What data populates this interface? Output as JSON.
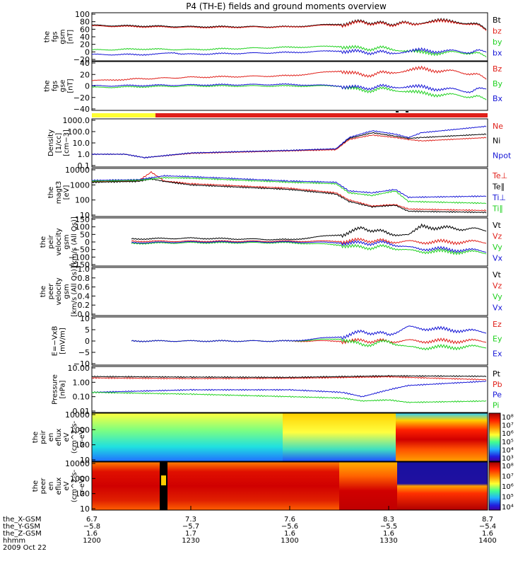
{
  "title": "P4 (TH-E) fields and ground moments overview",
  "colors": {
    "black": "#000000",
    "red": "#e0201a",
    "green": "#1fd11f",
    "blue": "#1515d6",
    "yellow": "#ffff33"
  },
  "chart_data": [
    {
      "type": "line",
      "ylabel": [
        "the",
        "fgs",
        "gsm",
        "[nT]"
      ],
      "ylim": [
        -30,
        100
      ],
      "yticks": [
        "100",
        "80",
        "60",
        "40",
        "20",
        "0",
        "−20"
      ],
      "series": [
        {
          "name": "Bt",
          "color": "black",
          "x": [
            1200,
            1230,
            1300,
            1316,
            1322,
            1330,
            1338,
            1345,
            1355,
            1400
          ],
          "y": [
            68,
            64,
            64,
            72,
            78,
            72,
            75,
            80,
            76,
            58
          ]
        },
        {
          "name": "bz",
          "color": "red",
          "x": [
            1200,
            1230,
            1300,
            1316,
            1322,
            1330,
            1338,
            1345,
            1355,
            1400
          ],
          "y": [
            66,
            62,
            63,
            70,
            76,
            70,
            74,
            78,
            74,
            55
          ]
        },
        {
          "name": "by",
          "color": "green",
          "x": [
            1200,
            1215,
            1230,
            1300,
            1316,
            1322,
            1330,
            1340,
            1355,
            1400
          ],
          "y": [
            -3,
            0,
            -2,
            5,
            8,
            0,
            3,
            -12,
            -10,
            -20
          ]
        },
        {
          "name": "bx",
          "color": "blue",
          "x": [
            1200,
            1215,
            1225,
            1230,
            1300,
            1316,
            1322,
            1330,
            1340,
            1355,
            1400
          ],
          "y": [
            -16,
            -16,
            -12,
            -15,
            -10,
            -5,
            -10,
            -10,
            -5,
            -8,
            -5
          ]
        }
      ]
    },
    {
      "type": "line",
      "ylabel": [
        "the",
        "fgs",
        "gse",
        "[nT]"
      ],
      "ylim": [
        -50,
        40
      ],
      "yticks": [
        "40",
        "20",
        "0",
        "−20",
        "−40"
      ],
      "series": [
        {
          "name": "Bz",
          "color": "red",
          "x": [
            1200,
            1210,
            1230,
            1300,
            1316,
            1322,
            1330,
            1340,
            1355,
            1400
          ],
          "y": [
            5,
            8,
            12,
            15,
            25,
            15,
            22,
            28,
            20,
            10
          ]
        },
        {
          "name": "By",
          "color": "green",
          "x": [
            1200,
            1230,
            1300,
            1316,
            1322,
            1330,
            1340,
            1355,
            1400
          ],
          "y": [
            -8,
            -5,
            -5,
            -5,
            -15,
            -10,
            -20,
            -25,
            -30
          ]
        },
        {
          "name": "Bx",
          "color": "blue",
          "x": [
            1200,
            1230,
            1300,
            1316,
            1322,
            1330,
            1340,
            1355,
            1400
          ],
          "y": [
            -5,
            -3,
            -2,
            -5,
            -10,
            -5,
            -8,
            -15,
            -8
          ]
        }
      ]
    },
    {
      "type": "line",
      "log": true,
      "ylabel": [
        "Density",
        "[1/cc]",
        "[cm−3]"
      ],
      "ylim": [
        0.1,
        1000
      ],
      "yticks": [
        "1000.0",
        "100.0",
        "10.0",
        "1.0",
        "0.1"
      ],
      "series": [
        {
          "name": "Ne",
          "color": "red",
          "x": [
            1200,
            1210,
            1216,
            1230,
            1300,
            1314,
            1318,
            1325,
            1332,
            1336,
            1340,
            1400
          ],
          "y": [
            1,
            1,
            0.5,
            1.2,
            2,
            2.5,
            20,
            50,
            30,
            20,
            15,
            30
          ]
        },
        {
          "name": "Ni",
          "color": "black",
          "x": [
            1200,
            1210,
            1216,
            1230,
            1300,
            1314,
            1318,
            1325,
            1332,
            1336,
            1340,
            1400
          ],
          "y": [
            1,
            1,
            0.5,
            1.3,
            2.2,
            3,
            25,
            80,
            40,
            25,
            30,
            60
          ]
        },
        {
          "name": "Npot",
          "color": "blue",
          "x": [
            1200,
            1210,
            1216,
            1230,
            1300,
            1314,
            1318,
            1325,
            1332,
            1336,
            1340,
            1400
          ],
          "y": [
            1,
            1,
            0.5,
            1.3,
            2.2,
            3,
            30,
            120,
            60,
            30,
            80,
            300
          ]
        }
      ]
    },
    {
      "type": "line",
      "log": true,
      "ylabel": [
        "the",
        "magt3",
        "[eV]"
      ],
      "ylim": [
        10,
        10000
      ],
      "yticks": [
        "10000",
        "1000",
        "100",
        "10"
      ],
      "series": [
        {
          "name": "Te⊥",
          "color": "red",
          "x": [
            1200,
            1214,
            1218,
            1222,
            1230,
            1300,
            1314,
            1318,
            1325,
            1332,
            1336,
            1400
          ],
          "y": [
            1600,
            1800,
            7000,
            1800,
            1200,
            600,
            300,
            100,
            40,
            50,
            25,
            20
          ]
        },
        {
          "name": "Te∥",
          "color": "black",
          "x": [
            1200,
            1214,
            1218,
            1222,
            1230,
            1300,
            1314,
            1318,
            1325,
            1332,
            1336,
            1400
          ],
          "y": [
            1500,
            1700,
            2500,
            1700,
            1000,
            500,
            250,
            80,
            35,
            45,
            18,
            15
          ]
        },
        {
          "name": "Ti⊥",
          "color": "blue",
          "x": [
            1200,
            1214,
            1222,
            1230,
            1300,
            1314,
            1318,
            1325,
            1332,
            1336,
            1400
          ],
          "y": [
            2000,
            2200,
            4000,
            3500,
            1800,
            1500,
            400,
            300,
            500,
            150,
            180
          ]
        },
        {
          "name": "Ti∥",
          "color": "green",
          "x": [
            1200,
            1214,
            1222,
            1230,
            1300,
            1314,
            1318,
            1325,
            1332,
            1336,
            1400
          ],
          "y": [
            1800,
            2000,
            3000,
            2800,
            1500,
            1200,
            300,
            200,
            400,
            80,
            60
          ]
        }
      ]
    },
    {
      "type": "line",
      "ylabel": [
        "the",
        "peir",
        "velocity",
        "gsm",
        "[km/s (All Qs)]"
      ],
      "ylim": [
        -150,
        150
      ],
      "yticks": [
        "150",
        "100",
        "50",
        "0",
        "−50",
        "−100",
        "−150"
      ],
      "series": [
        {
          "name": "Vt",
          "color": "black",
          "x": [
            1212,
            1230,
            1300,
            1316,
            1322,
            1330,
            1336,
            1340,
            1400
          ],
          "y": [
            20,
            25,
            15,
            50,
            90,
            60,
            40,
            100,
            80
          ]
        },
        {
          "name": "Vz",
          "color": "red",
          "x": [
            1212,
            1230,
            1300,
            1316,
            1322,
            1330,
            1336,
            1400
          ],
          "y": [
            5,
            5,
            5,
            5,
            10,
            5,
            0,
            0
          ]
        },
        {
          "name": "Vy",
          "color": "green",
          "x": [
            1212,
            1230,
            1300,
            1316,
            1322,
            1330,
            1336,
            1400
          ],
          "y": [
            -10,
            -5,
            -5,
            -20,
            -40,
            -30,
            -60,
            -70
          ]
        },
        {
          "name": "Vx",
          "color": "blue",
          "x": [
            1212,
            1230,
            1300,
            1316,
            1322,
            1330,
            1336,
            1400
          ],
          "y": [
            -5,
            0,
            0,
            -5,
            -10,
            -5,
            -40,
            -60
          ]
        }
      ]
    },
    {
      "type": "line",
      "ylabel": [
        "the",
        "peer",
        "velocity",
        "gsm",
        "[km/s (All Qs)]"
      ],
      "ylim": [
        0,
        1
      ],
      "yticks": [
        "1.0",
        "0.8",
        "0.6",
        "0.4",
        "0.2",
        "0.0"
      ],
      "series": [
        {
          "name": "Vt",
          "color": "black",
          "x": [],
          "y": []
        },
        {
          "name": "Vz",
          "color": "red",
          "x": [],
          "y": []
        },
        {
          "name": "Vy",
          "color": "green",
          "x": [],
          "y": []
        },
        {
          "name": "Vx",
          "color": "blue",
          "x": [],
          "y": []
        }
      ]
    },
    {
      "type": "line",
      "ylabel": [
        "E=−VxB",
        "[mV/m]"
      ],
      "ylim": [
        -10,
        10
      ],
      "yticks": [
        "10",
        "5",
        "0",
        "−5",
        "−10"
      ],
      "series": [
        {
          "name": "Ez",
          "color": "red",
          "x": [
            1212,
            1230,
            1300,
            1316,
            1322,
            1330,
            1336,
            1400
          ],
          "y": [
            0,
            0,
            0,
            0,
            0,
            0,
            0,
            0
          ]
        },
        {
          "name": "Ey",
          "color": "green",
          "x": [
            1212,
            1230,
            1300,
            1316,
            1322,
            1330,
            1336,
            1400
          ],
          "y": [
            0,
            0,
            0,
            1,
            -2,
            0,
            -3,
            -2.5
          ]
        },
        {
          "name": "Ex",
          "color": "blue",
          "x": [
            1212,
            1230,
            1300,
            1316,
            1322,
            1330,
            1336,
            1400
          ],
          "y": [
            0,
            0,
            0,
            2,
            4,
            3,
            6,
            4
          ]
        }
      ]
    },
    {
      "type": "line",
      "log": true,
      "ylabel": [
        "Pressure",
        "[nPa]"
      ],
      "ylim": [
        0.01,
        10
      ],
      "yticks": [
        "10.00",
        "1.00",
        "0.10",
        "0.01"
      ],
      "series": [
        {
          "name": "Pt",
          "color": "black",
          "x": [
            1200,
            1230,
            1300,
            1330,
            1400
          ],
          "y": [
            2.5,
            2.3,
            2.2,
            2.8,
            2.6
          ]
        },
        {
          "name": "Pb",
          "color": "red",
          "x": [
            1200,
            1230,
            1300,
            1330,
            1400
          ],
          "y": [
            2,
            1.8,
            1.9,
            2.4,
            1.5
          ]
        },
        {
          "name": "Pe",
          "color": "blue",
          "x": [
            1200,
            1230,
            1300,
            1316,
            1322,
            1330,
            1336,
            1400
          ],
          "y": [
            0.2,
            0.3,
            0.3,
            0.2,
            0.1,
            0.3,
            0.6,
            1.2
          ]
        },
        {
          "name": "Pi",
          "color": "green",
          "x": [
            1200,
            1230,
            1300,
            1316,
            1322,
            1330,
            1336,
            1400
          ],
          "y": [
            0.2,
            0.15,
            0.1,
            0.08,
            0.05,
            0.06,
            0.04,
            0.05
          ]
        }
      ]
    },
    {
      "type": "heatmap",
      "ylabel": [
        "the",
        "peir",
        "en",
        "eflux",
        "eV",
        "(cm^2-s-",
        "sr-eV)"
      ],
      "yticks": [
        "10000",
        "1000",
        "100",
        "10"
      ],
      "cbar_ticks": [
        "10⁸",
        "10⁷",
        "10⁶",
        "10⁵",
        "10⁴",
        "10³"
      ]
    },
    {
      "type": "heatmap",
      "ylabel": [
        "the",
        "peer",
        "en",
        "eflux",
        "eV",
        "(cm^2-s-",
        "sr-eV)"
      ],
      "yticks": [
        "10000",
        "1000",
        "100",
        "10"
      ],
      "cbar_ticks": [
        "10⁸",
        "10⁷",
        "10⁶",
        "10⁵",
        "10⁴"
      ]
    }
  ],
  "xaxis": {
    "labels": [
      "the_X-GSM",
      "the_Y-GSM",
      "the_Z-GSM",
      "hhmm",
      "2009 Oct 22"
    ],
    "ticks": [
      {
        "x": "6.7",
        "y": "−5.8",
        "z": "1.6",
        "t": "1200"
      },
      {
        "x": "7.3",
        "y": "−5.7",
        "z": "1.7",
        "t": "1230"
      },
      {
        "x": "7.6",
        "y": "−5.6",
        "z": "1.6",
        "t": "1300"
      },
      {
        "x": "8.3",
        "y": "−5.5",
        "z": "1.6",
        "t": "1330"
      },
      {
        "x": "8.7",
        "y": "−5.4",
        "z": "1.6",
        "t": "1400"
      }
    ]
  }
}
